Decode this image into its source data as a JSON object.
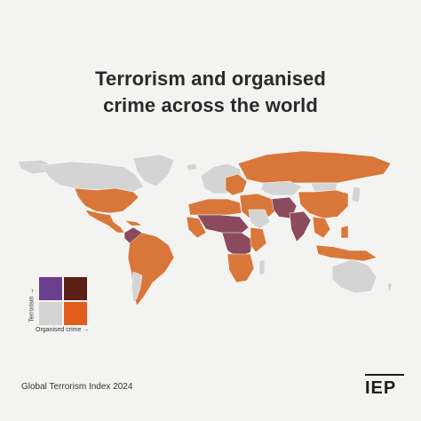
{
  "title_line1": "Terrorism and organised",
  "title_line2": "crime across the world",
  "legend": {
    "y_label": "Terrorism →",
    "x_label": "Organised crime →",
    "colors": {
      "high_terror_low_crime": "#6b3f8f",
      "high_terror_high_crime": "#5a2015",
      "low_terror_low_crime": "#d3d3d3",
      "low_terror_high_crime": "#e05d1b"
    }
  },
  "map_colors": {
    "background": "#f3f3f1",
    "grey": "#d4d4d4",
    "orange": "#d9773a",
    "mauve": "#8b4a5e",
    "purple": "#7d4b8a",
    "border": "#ffffff"
  },
  "source": "Global Terrorism Index 2024",
  "logo_text": "IEP"
}
